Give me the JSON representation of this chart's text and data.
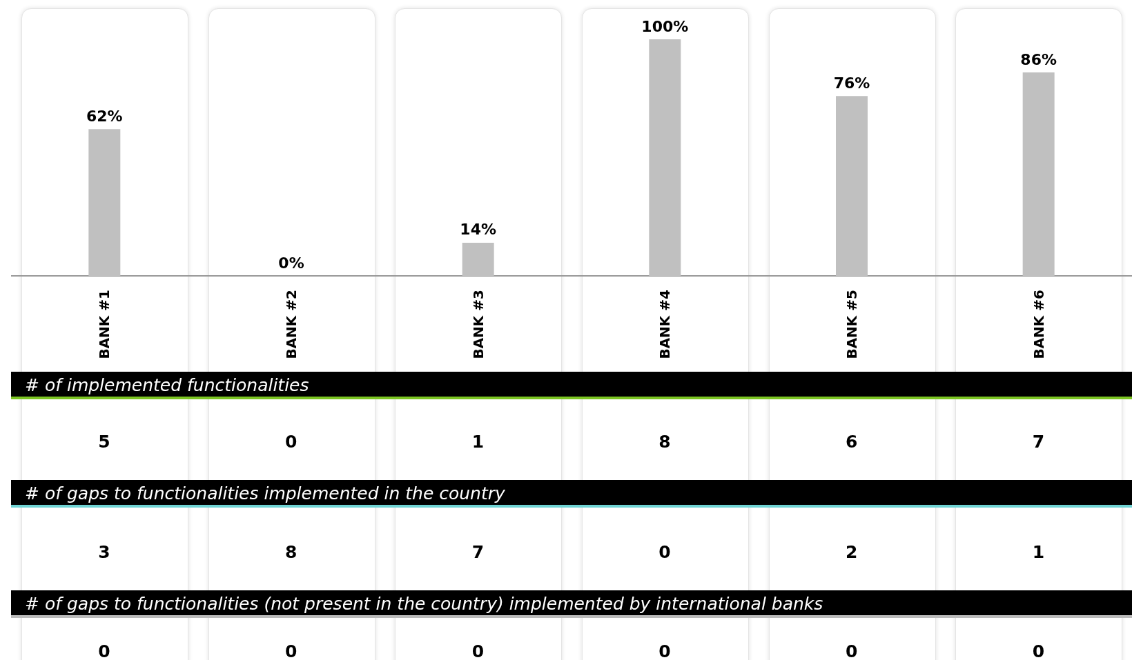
{
  "chart_data": [
    {
      "type": "bar",
      "categories": [
        "BANK #1",
        "BANK #2",
        "BANK #3",
        "BANK #4",
        "BANK #5",
        "BANK #6"
      ],
      "values": [
        62,
        0,
        14,
        100,
        76,
        86
      ],
      "color": "#c0c0c0",
      "value_labels": [
        "62%",
        "0%",
        "14%",
        "100%",
        "76%",
        "86%"
      ]
    },
    {
      "type": "other",
      "title": "# of implemented functionalities",
      "values": [
        5,
        0,
        1,
        8,
        6,
        7
      ],
      "data_labels": true
    },
    {
      "type": "other",
      "title": "# of gaps to functionalities implemented in the country",
      "values": [
        3,
        8,
        7,
        0,
        2,
        1
      ],
      "data_labels": true
    },
    {
      "type": "other",
      "title": "# of gaps to functionalities (not present in the country) implemented by international banks",
      "values": [
        0,
        0,
        0,
        0,
        0,
        0
      ],
      "data_labels": true
    }
  ]
}
